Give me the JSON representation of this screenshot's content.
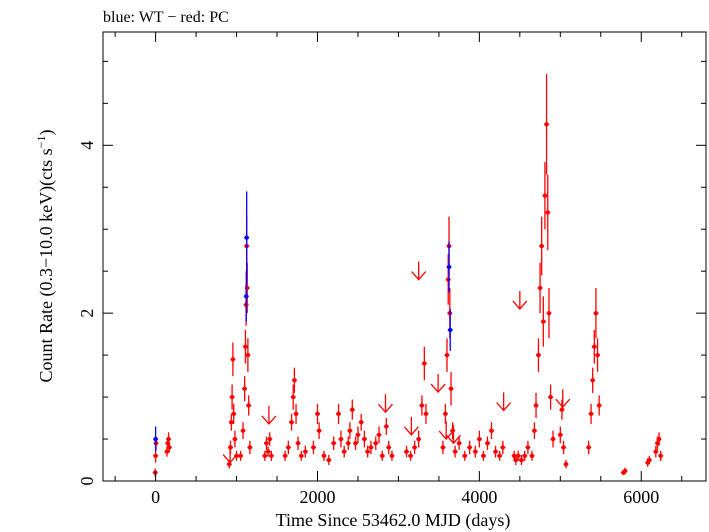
{
  "chart_data": {
    "type": "scatter",
    "title": "blue: WT − red: PC",
    "xlabel": "Time Since 53462.0 MJD (days)",
    "ylabel_main": "Count Rate (0.3−10.0 keV)(cts s",
    "ylabel_sup": "−1",
    "ylabel_tail": ")",
    "xlim": [
      -650,
      6800
    ],
    "ylim": [
      0,
      5.35
    ],
    "x_ticks": [
      0,
      2000,
      4000,
      6000
    ],
    "x_tick_labels": [
      "0",
      "2000",
      "4000",
      "6000"
    ],
    "y_ticks": [
      0,
      2,
      4
    ],
    "y_tick_labels": [
      "0",
      "2",
      "4"
    ],
    "x_minor_step": 500,
    "y_minor_step": 0.5,
    "grid": false,
    "colors": {
      "WT": "#0000ff",
      "PC": "#ff0000",
      "axis": "#000000"
    },
    "series": [
      {
        "name": "WT",
        "points": [
          {
            "x": 0,
            "y": 0.5,
            "err": 0.15
          },
          {
            "x": 1125,
            "y": 2.9,
            "err": 0.55
          },
          {
            "x": 1120,
            "y": 2.2,
            "err": 0.3
          },
          {
            "x": 3625,
            "y": 2.55,
            "err": 0.3
          },
          {
            "x": 3640,
            "y": 1.8,
            "err": 0.25
          }
        ]
      },
      {
        "name": "PC",
        "points": [
          {
            "x": -5,
            "y": 0.1,
            "err": 0.05
          },
          {
            "x": 0,
            "y": 0.3,
            "err": 0.08
          },
          {
            "x": 5,
            "y": 0.45,
            "err": 0.08
          },
          {
            "x": 140,
            "y": 0.35,
            "err": 0.06
          },
          {
            "x": 150,
            "y": 0.45,
            "err": 0.07
          },
          {
            "x": 160,
            "y": 0.5,
            "err": 0.08
          },
          {
            "x": 170,
            "y": 0.4,
            "err": 0.06
          },
          {
            "x": 910,
            "y": 0.2,
            "err": 0.05
          },
          {
            "x": 925,
            "y": 0.4,
            "err": 0.08
          },
          {
            "x": 935,
            "y": 0.7,
            "err": 0.1
          },
          {
            "x": 945,
            "y": 1.0,
            "err": 0.15
          },
          {
            "x": 955,
            "y": 1.45,
            "err": 0.2
          },
          {
            "x": 965,
            "y": 0.8,
            "err": 0.12
          },
          {
            "x": 980,
            "y": 0.5,
            "err": 0.1
          },
          {
            "x": 1000,
            "y": 0.3,
            "err": 0.06
          },
          {
            "x": 1050,
            "y": 0.3,
            "err": 0.06
          },
          {
            "x": 1080,
            "y": 0.6,
            "err": 0.1
          },
          {
            "x": 1100,
            "y": 1.1,
            "err": 0.15
          },
          {
            "x": 1110,
            "y": 1.6,
            "err": 0.2
          },
          {
            "x": 1118,
            "y": 2.1,
            "err": 0.25
          },
          {
            "x": 1125,
            "y": 2.8,
            "err": 0.35
          },
          {
            "x": 1132,
            "y": 2.3,
            "err": 0.3
          },
          {
            "x": 1140,
            "y": 1.5,
            "err": 0.2
          },
          {
            "x": 1150,
            "y": 0.9,
            "err": 0.12
          },
          {
            "x": 1165,
            "y": 0.4,
            "err": 0.08
          },
          {
            "x": 1350,
            "y": 0.3,
            "err": 0.06
          },
          {
            "x": 1370,
            "y": 0.45,
            "err": 0.08
          },
          {
            "x": 1390,
            "y": 0.35,
            "err": 0.06
          },
          {
            "x": 1410,
            "y": 0.5,
            "err": 0.08
          },
          {
            "x": 1430,
            "y": 0.3,
            "err": 0.06
          },
          {
            "x": 1600,
            "y": 0.3,
            "err": 0.06
          },
          {
            "x": 1640,
            "y": 0.4,
            "err": 0.08
          },
          {
            "x": 1680,
            "y": 0.7,
            "err": 0.1
          },
          {
            "x": 1700,
            "y": 1.0,
            "err": 0.15
          },
          {
            "x": 1715,
            "y": 1.2,
            "err": 0.15
          },
          {
            "x": 1735,
            "y": 0.8,
            "err": 0.12
          },
          {
            "x": 1760,
            "y": 0.45,
            "err": 0.08
          },
          {
            "x": 1800,
            "y": 0.3,
            "err": 0.06
          },
          {
            "x": 1850,
            "y": 0.35,
            "err": 0.07
          },
          {
            "x": 1950,
            "y": 0.4,
            "err": 0.08
          },
          {
            "x": 2000,
            "y": 0.8,
            "err": 0.12
          },
          {
            "x": 2020,
            "y": 0.6,
            "err": 0.1
          },
          {
            "x": 2080,
            "y": 0.3,
            "err": 0.06
          },
          {
            "x": 2140,
            "y": 0.25,
            "err": 0.06
          },
          {
            "x": 2200,
            "y": 0.45,
            "err": 0.08
          },
          {
            "x": 2260,
            "y": 0.8,
            "err": 0.12
          },
          {
            "x": 2290,
            "y": 0.5,
            "err": 0.1
          },
          {
            "x": 2330,
            "y": 0.35,
            "err": 0.07
          },
          {
            "x": 2380,
            "y": 0.45,
            "err": 0.08
          },
          {
            "x": 2400,
            "y": 0.6,
            "err": 0.1
          },
          {
            "x": 2430,
            "y": 0.85,
            "err": 0.12
          },
          {
            "x": 2470,
            "y": 0.45,
            "err": 0.08
          },
          {
            "x": 2500,
            "y": 0.55,
            "err": 0.1
          },
          {
            "x": 2540,
            "y": 0.7,
            "err": 0.1
          },
          {
            "x": 2580,
            "y": 0.5,
            "err": 0.1
          },
          {
            "x": 2620,
            "y": 0.35,
            "err": 0.07
          },
          {
            "x": 2660,
            "y": 0.4,
            "err": 0.08
          },
          {
            "x": 2720,
            "y": 0.45,
            "err": 0.08
          },
          {
            "x": 2760,
            "y": 0.55,
            "err": 0.1
          },
          {
            "x": 2800,
            "y": 0.3,
            "err": 0.06
          },
          {
            "x": 2850,
            "y": 0.65,
            "err": 0.1
          },
          {
            "x": 2880,
            "y": 0.4,
            "err": 0.08
          },
          {
            "x": 2920,
            "y": 0.3,
            "err": 0.06
          },
          {
            "x": 3100,
            "y": 0.35,
            "err": 0.07
          },
          {
            "x": 3150,
            "y": 0.3,
            "err": 0.06
          },
          {
            "x": 3200,
            "y": 0.4,
            "err": 0.08
          },
          {
            "x": 3250,
            "y": 0.5,
            "err": 0.1
          },
          {
            "x": 3290,
            "y": 0.9,
            "err": 0.12
          },
          {
            "x": 3320,
            "y": 1.4,
            "err": 0.2
          },
          {
            "x": 3340,
            "y": 0.8,
            "err": 0.12
          },
          {
            "x": 3550,
            "y": 0.4,
            "err": 0.08
          },
          {
            "x": 3580,
            "y": 0.8,
            "err": 0.12
          },
          {
            "x": 3600,
            "y": 1.5,
            "err": 0.2
          },
          {
            "x": 3615,
            "y": 2.4,
            "err": 0.3
          },
          {
            "x": 3625,
            "y": 2.8,
            "err": 0.35
          },
          {
            "x": 3635,
            "y": 2.0,
            "err": 0.3
          },
          {
            "x": 3650,
            "y": 1.1,
            "err": 0.2
          },
          {
            "x": 3670,
            "y": 0.6,
            "err": 0.1
          },
          {
            "x": 3700,
            "y": 0.35,
            "err": 0.07
          },
          {
            "x": 3750,
            "y": 0.45,
            "err": 0.08
          },
          {
            "x": 3820,
            "y": 0.3,
            "err": 0.06
          },
          {
            "x": 3880,
            "y": 0.4,
            "err": 0.08
          },
          {
            "x": 3950,
            "y": 0.35,
            "err": 0.07
          },
          {
            "x": 4000,
            "y": 0.5,
            "err": 0.1
          },
          {
            "x": 4050,
            "y": 0.3,
            "err": 0.06
          },
          {
            "x": 4100,
            "y": 0.45,
            "err": 0.08
          },
          {
            "x": 4150,
            "y": 0.6,
            "err": 0.1
          },
          {
            "x": 4200,
            "y": 0.35,
            "err": 0.07
          },
          {
            "x": 4250,
            "y": 0.3,
            "err": 0.06
          },
          {
            "x": 4290,
            "y": 0.4,
            "err": 0.08
          },
          {
            "x": 4430,
            "y": 0.3,
            "err": 0.06
          },
          {
            "x": 4450,
            "y": 0.25,
            "err": 0.06
          },
          {
            "x": 4480,
            "y": 0.3,
            "err": 0.06
          },
          {
            "x": 4520,
            "y": 0.25,
            "err": 0.06
          },
          {
            "x": 4560,
            "y": 0.3,
            "err": 0.06
          },
          {
            "x": 4600,
            "y": 0.4,
            "err": 0.08
          },
          {
            "x": 4650,
            "y": 0.3,
            "err": 0.06
          },
          {
            "x": 4680,
            "y": 0.6,
            "err": 0.1
          },
          {
            "x": 4700,
            "y": 0.9,
            "err": 0.15
          },
          {
            "x": 4730,
            "y": 1.5,
            "err": 0.2
          },
          {
            "x": 4750,
            "y": 2.3,
            "err": 0.3
          },
          {
            "x": 4770,
            "y": 2.8,
            "err": 0.35
          },
          {
            "x": 4790,
            "y": 1.9,
            "err": 0.3
          },
          {
            "x": 4810,
            "y": 3.4,
            "err": 0.4
          },
          {
            "x": 4830,
            "y": 4.25,
            "err": 0.6
          },
          {
            "x": 4845,
            "y": 3.2,
            "err": 0.45
          },
          {
            "x": 4860,
            "y": 2.0,
            "err": 0.3
          },
          {
            "x": 4880,
            "y": 1.0,
            "err": 0.15
          },
          {
            "x": 4910,
            "y": 0.5,
            "err": 0.1
          },
          {
            "x": 5000,
            "y": 0.55,
            "err": 0.1
          },
          {
            "x": 5020,
            "y": 0.85,
            "err": 0.12
          },
          {
            "x": 5040,
            "y": 0.4,
            "err": 0.08
          },
          {
            "x": 5070,
            "y": 0.2,
            "err": 0.05
          },
          {
            "x": 5350,
            "y": 0.4,
            "err": 0.08
          },
          {
            "x": 5380,
            "y": 0.8,
            "err": 0.12
          },
          {
            "x": 5400,
            "y": 1.2,
            "err": 0.15
          },
          {
            "x": 5420,
            "y": 1.6,
            "err": 0.2
          },
          {
            "x": 5440,
            "y": 2.0,
            "err": 0.3
          },
          {
            "x": 5460,
            "y": 1.5,
            "err": 0.2
          },
          {
            "x": 5480,
            "y": 0.9,
            "err": 0.12
          },
          {
            "x": 5780,
            "y": 0.1,
            "err": 0.03
          },
          {
            "x": 5800,
            "y": 0.12,
            "err": 0.04
          },
          {
            "x": 6080,
            "y": 0.22,
            "err": 0.05
          },
          {
            "x": 6100,
            "y": 0.25,
            "err": 0.05
          },
          {
            "x": 6180,
            "y": 0.35,
            "err": 0.07
          },
          {
            "x": 6200,
            "y": 0.45,
            "err": 0.08
          },
          {
            "x": 6220,
            "y": 0.5,
            "err": 0.08
          },
          {
            "x": 6240,
            "y": 0.3,
            "err": 0.06
          }
        ]
      }
    ],
    "upper_limits": [
      {
        "x": 920,
        "y": 0.22
      },
      {
        "x": 1400,
        "y": 0.68
      },
      {
        "x": 2840,
        "y": 0.82
      },
      {
        "x": 3160,
        "y": 0.55
      },
      {
        "x": 3250,
        "y": 2.4
      },
      {
        "x": 3490,
        "y": 1.06
      },
      {
        "x": 3590,
        "y": 0.5
      },
      {
        "x": 3680,
        "y": 0.45
      },
      {
        "x": 4300,
        "y": 0.84
      },
      {
        "x": 4500,
        "y": 2.05
      },
      {
        "x": 5030,
        "y": 0.88
      }
    ]
  }
}
